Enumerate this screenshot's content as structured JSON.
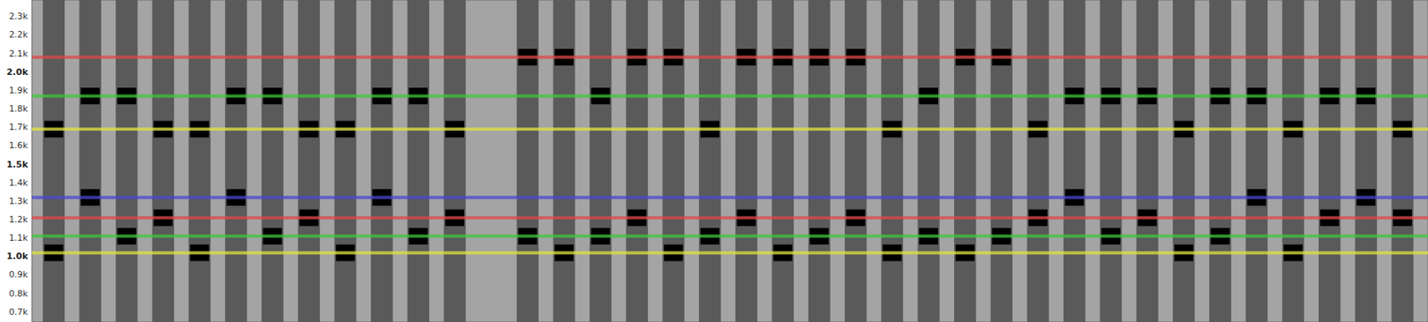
{
  "chart_data": {
    "type": "spectrogram",
    "tick_labels": "y",
    "xlim": [
      -0.6,
      37.7
    ],
    "ylim": [
      645,
      2390
    ],
    "yticks": [
      {
        "value": 700,
        "label": "0.7k"
      },
      {
        "value": 800,
        "label": "0.8k"
      },
      {
        "value": 900,
        "label": "0.9k"
      },
      {
        "value": 1000,
        "label": "1.0k"
      },
      {
        "value": 1100,
        "label": "1.1k"
      },
      {
        "value": 1200,
        "label": "1.2k"
      },
      {
        "value": 1300,
        "label": "1.3k"
      },
      {
        "value": 1400,
        "label": "1.4k"
      },
      {
        "value": 1500,
        "label": "1.5k"
      },
      {
        "value": 1600,
        "label": "1.6k"
      },
      {
        "value": 1700,
        "label": "1.7k"
      },
      {
        "value": 1800,
        "label": "1.8k"
      },
      {
        "value": 1900,
        "label": "1.9k"
      },
      {
        "value": 2000,
        "label": "2.0k"
      },
      {
        "value": 2100,
        "label": "2.1k"
      },
      {
        "value": 2200,
        "label": "2.2k"
      },
      {
        "value": 2300,
        "label": "2.3k"
      }
    ],
    "x": [
      0,
      1,
      2,
      3,
      4,
      5,
      6,
      7,
      8,
      9,
      10,
      11,
      12,
      13,
      14,
      15,
      16,
      17,
      18,
      19,
      20,
      21,
      22,
      23,
      24,
      25,
      26,
      27,
      28,
      29,
      30,
      31,
      32,
      33,
      34,
      35,
      36,
      37
    ],
    "high": [
      1690,
      1870,
      1870,
      1690,
      1690,
      1870,
      1870,
      1690,
      1690,
      1870,
      1870,
      1690,
      null,
      2080,
      2080,
      1870,
      2080,
      2080,
      1690,
      2080,
      2080,
      2080,
      2080,
      1690,
      1870,
      2080,
      2080,
      1690,
      1870,
      1870,
      1870,
      1690,
      1870,
      1870,
      1690,
      1870,
      1870,
      1690
    ],
    "low": [
      1020,
      1320,
      1110,
      1210,
      1020,
      1320,
      1110,
      1210,
      1020,
      1320,
      1110,
      1210,
      null,
      1110,
      1020,
      1110,
      1210,
      1020,
      1110,
      1210,
      1020,
      1110,
      1210,
      1020,
      1110,
      1020,
      1110,
      1210,
      1320,
      1110,
      1210,
      1020,
      1110,
      1320,
      1020,
      1210,
      1320,
      1210
    ],
    "color": "#000000",
    "reference_lines": [
      {
        "value": 2080,
        "color": "#e04848"
      },
      {
        "value": 1870,
        "color": "#3cc83c"
      },
      {
        "value": 1690,
        "color": "#e0e040"
      },
      {
        "value": 1320,
        "color": "#4848d0"
      },
      {
        "value": 1210,
        "color": "#e04848"
      },
      {
        "value": 1110,
        "color": "#3cc83c"
      },
      {
        "value": 1020,
        "color": "#e0e040"
      }
    ]
  }
}
